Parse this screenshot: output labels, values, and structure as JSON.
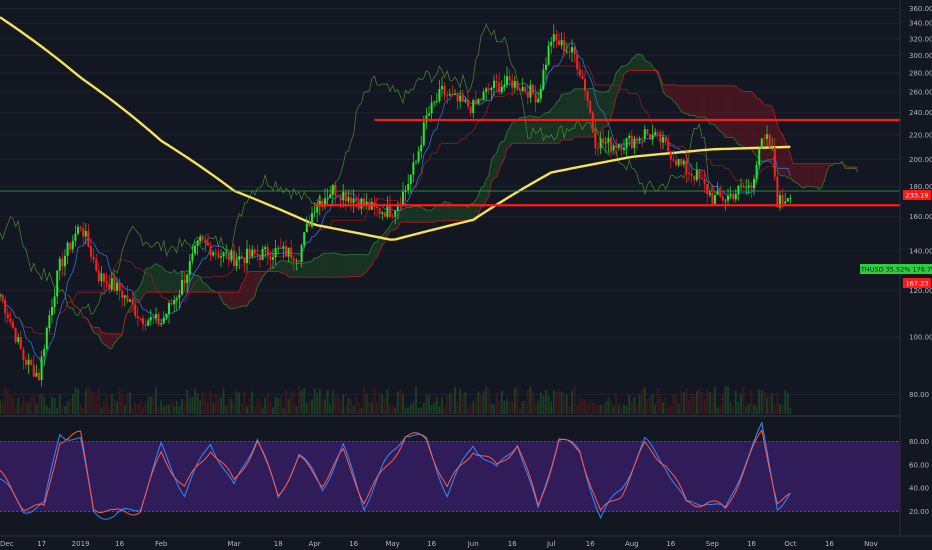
{
  "colors": {
    "background": "#131722",
    "grid": "#1e2230",
    "up_candle": "#26e82a",
    "down_candle": "#ff1f1f",
    "ma200": "#f5e25b",
    "horizontal_line": "#ff1a1a",
    "current_price_line": "#3fa34d",
    "stoch_band": "#3a1f6b",
    "stoch_k": "#2f8cff",
    "stoch_d": "#ff5a4a",
    "cloud_bear": "#6b1620",
    "cloud_bull": "#1e4a24",
    "senkou_a": "#2e7d32",
    "senkou_b": "#b71c1c",
    "kijun": "#8a1d1d",
    "chikou": "#5aa53a"
  },
  "price_axis": {
    "ticks": [
      "360.00",
      "340.00",
      "320.00",
      "300.00",
      "280.00",
      "260.00",
      "240.00",
      "220.00",
      "200.00",
      "180.00",
      "160.00",
      "140.00",
      "120.00",
      "100.00",
      "80.00"
    ]
  },
  "stoch_axis": {
    "ticks": [
      "80.00",
      "60.00",
      "40.00",
      "20.00"
    ]
  },
  "time_axis": {
    "ticks": [
      "Dec",
      "17",
      "2019",
      "16",
      "Feb",
      "Mar",
      "18",
      "Apr",
      "16",
      "May",
      "16",
      "Jun",
      "16",
      "Jul",
      "16",
      "Aug",
      "16",
      "Sep",
      "16",
      "Oct",
      "16",
      "Nov"
    ]
  },
  "tags": {
    "resistance": "233.19",
    "support": "167.23",
    "symbol_price": "ETHUSD 35.52% 176.79"
  },
  "chart_data": [
    {
      "type": "line",
      "panel": "price",
      "symbol": "ETHUSD",
      "y_scale": "log",
      "ylim": [
        75,
        365
      ],
      "x": [
        "2018-12-01",
        "2018-12-10",
        "2018-12-16",
        "2018-12-24",
        "2019-01-01",
        "2019-01-08",
        "2019-01-16",
        "2019-01-24",
        "2019-02-01",
        "2019-02-08",
        "2019-02-16",
        "2019-02-24",
        "2019-03-01",
        "2019-03-10",
        "2019-03-18",
        "2019-03-26",
        "2019-04-01",
        "2019-04-08",
        "2019-04-16",
        "2019-04-24",
        "2019-05-01",
        "2019-05-06",
        "2019-05-10",
        "2019-05-14",
        "2019-05-20",
        "2019-05-26",
        "2019-06-01",
        "2019-06-08",
        "2019-06-16",
        "2019-06-22",
        "2019-06-26",
        "2019-07-01",
        "2019-07-06",
        "2019-07-10",
        "2019-07-14",
        "2019-07-18",
        "2019-07-24",
        "2019-08-01",
        "2019-08-06",
        "2019-08-12",
        "2019-08-16",
        "2019-08-20",
        "2019-08-26",
        "2019-09-01",
        "2019-09-06",
        "2019-09-12",
        "2019-09-16",
        "2019-09-19",
        "2019-09-22",
        "2019-09-24",
        "2019-09-26",
        "2019-09-28",
        "2019-10-01"
      ],
      "close": [
        118,
        92,
        86,
        132,
        155,
        127,
        120,
        108,
        106,
        120,
        145,
        138,
        136,
        138,
        140,
        138,
        167,
        178,
        172,
        164,
        164,
        178,
        198,
        235,
        260,
        250,
        245,
        265,
        270,
        262,
        255,
        320,
        310,
        300,
        265,
        215,
        212,
        215,
        222,
        215,
        205,
        195,
        187,
        172,
        172,
        178,
        180,
        210,
        215,
        205,
        170,
        170,
        176.79
      ],
      "series": [
        {
          "name": "MA",
          "x": [
            "2018-12-01",
            "2019-01-01",
            "2019-02-01",
            "2019-03-01",
            "2019-04-01",
            "2019-05-01",
            "2019-06-01",
            "2019-07-01",
            "2019-08-01",
            "2019-09-01",
            "2019-10-01"
          ],
          "values": [
            348,
            275,
            215,
            177,
            155,
            146,
            158,
            190,
            202,
            208,
            210
          ]
        }
      ],
      "horizontal_lines": [
        {
          "label": "233.19",
          "value": 233.19,
          "from": "2019-04-24"
        },
        {
          "label": "167.23",
          "value": 167.23,
          "from": "2019-04-01"
        }
      ]
    },
    {
      "type": "line",
      "panel": "stochastic",
      "ylim": [
        0,
        100
      ],
      "bands": [
        20,
        80
      ],
      "x": [
        "2018-12-01",
        "2018-12-10",
        "2018-12-18",
        "2018-12-24",
        "2019-01-01",
        "2019-01-06",
        "2019-01-14",
        "2019-01-24",
        "2019-02-01",
        "2019-02-10",
        "2019-02-20",
        "2019-03-01",
        "2019-03-10",
        "2019-03-18",
        "2019-03-26",
        "2019-04-04",
        "2019-04-12",
        "2019-04-20",
        "2019-04-28",
        "2019-05-06",
        "2019-05-14",
        "2019-05-22",
        "2019-06-01",
        "2019-06-10",
        "2019-06-18",
        "2019-06-26",
        "2019-07-04",
        "2019-07-12",
        "2019-07-20",
        "2019-07-28",
        "2019-08-06",
        "2019-08-14",
        "2019-08-22",
        "2019-08-30",
        "2019-09-06",
        "2019-09-14",
        "2019-09-20",
        "2019-09-26",
        "2019-10-01"
      ],
      "series": [
        {
          "name": "K",
          "values": [
            48,
            22,
            25,
            88,
            80,
            20,
            15,
            25,
            75,
            35,
            80,
            40,
            85,
            30,
            70,
            40,
            75,
            25,
            60,
            88,
            80,
            35,
            78,
            55,
            80,
            20,
            85,
            70,
            15,
            40,
            80,
            60,
            25,
            30,
            20,
            65,
            92,
            25,
            35
          ]
        },
        {
          "name": "D",
          "values": [
            52,
            25,
            22,
            82,
            85,
            25,
            18,
            22,
            70,
            40,
            75,
            45,
            80,
            35,
            65,
            45,
            70,
            30,
            55,
            85,
            82,
            40,
            74,
            58,
            78,
            25,
            80,
            73,
            18,
            36,
            76,
            62,
            28,
            28,
            22,
            60,
            88,
            30,
            32
          ]
        }
      ]
    }
  ]
}
